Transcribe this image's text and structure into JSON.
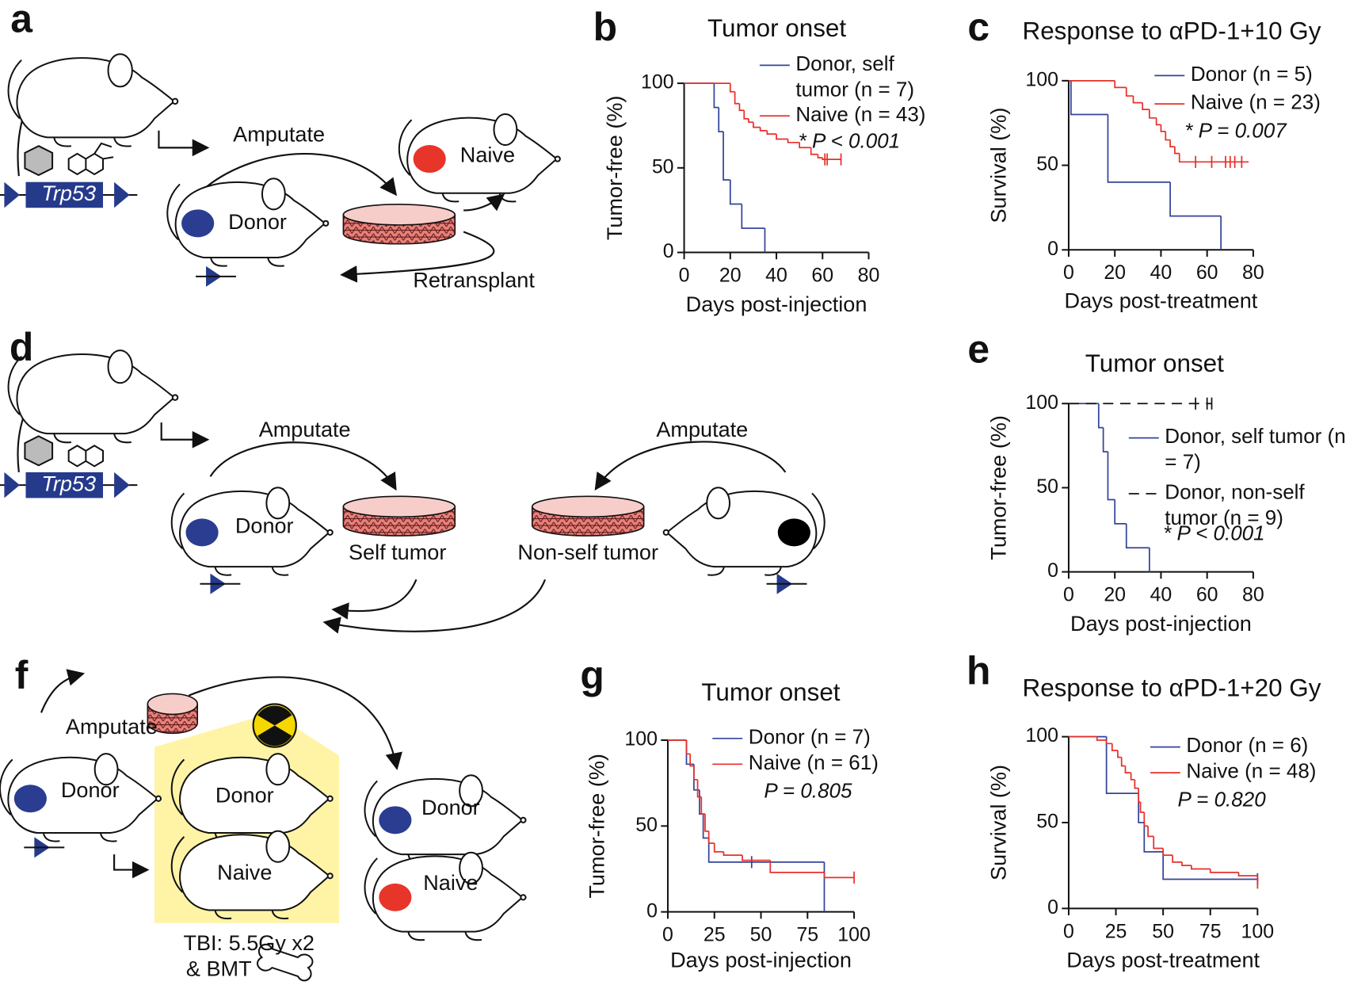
{
  "chart_data": [
    {
      "type": "line",
      "panel": "b",
      "title": "Tumor onset",
      "xlabel": "Days post-injection",
      "ylabel": "Tumor-free (%)",
      "xlim": [
        0,
        80
      ],
      "xticks": [
        0,
        20,
        40,
        60,
        80
      ],
      "ylim": [
        0,
        100
      ],
      "yticks": [
        0,
        50,
        100
      ],
      "step": true,
      "series": [
        {
          "name": "Donor, self tumor (n = 7)",
          "color": "#34449a",
          "x": [
            0,
            13,
            15,
            17,
            20,
            25,
            35
          ],
          "values": [
            100,
            85.7,
            71.4,
            42.9,
            28.6,
            14.3,
            0
          ],
          "censored": []
        },
        {
          "name": "Naive (n = 43)",
          "color": "#e8302a",
          "x": [
            0,
            20,
            22,
            24,
            26,
            28,
            30,
            33,
            36,
            40,
            45,
            50,
            55,
            58,
            60,
            68
          ],
          "values": [
            100,
            95,
            88,
            84,
            79,
            77,
            74,
            72,
            70,
            67,
            65,
            62,
            58,
            56,
            55,
            55
          ],
          "censored": [
            61,
            62,
            68
          ]
        }
      ],
      "annotation": "* P < 0.001"
    },
    {
      "type": "line",
      "panel": "c",
      "title": "Response to αPD-1+10 Gy",
      "xlabel": "Days post-treatment",
      "ylabel": "Survival (%)",
      "xlim": [
        0,
        80
      ],
      "xticks": [
        0,
        20,
        40,
        60,
        80
      ],
      "ylim": [
        0,
        100
      ],
      "yticks": [
        0,
        50,
        100
      ],
      "step": true,
      "series": [
        {
          "name": "Donor (n = 5)",
          "color": "#34449a",
          "x": [
            0,
            1,
            17,
            44,
            66
          ],
          "values": [
            100,
            80,
            40,
            20,
            0
          ],
          "censored": []
        },
        {
          "name": "Naive (n = 23)",
          "color": "#e8302a",
          "x": [
            0,
            20,
            25,
            28,
            32,
            35,
            38,
            40,
            42,
            44,
            46,
            48,
            78
          ],
          "values": [
            100,
            96,
            91,
            87,
            83,
            78,
            74,
            70,
            65,
            61,
            57,
            52,
            52
          ],
          "censored": [
            55,
            62,
            68,
            70,
            72,
            75
          ]
        }
      ],
      "annotation": "* P = 0.007"
    },
    {
      "type": "line",
      "panel": "e",
      "title": "Tumor onset",
      "xlabel": "Days post-injection",
      "ylabel": "Tumor-free (%)",
      "xlim": [
        0,
        80
      ],
      "xticks": [
        0,
        20,
        40,
        60,
        80
      ],
      "ylim": [
        0,
        100
      ],
      "yticks": [
        0,
        50,
        100
      ],
      "step": true,
      "series": [
        {
          "name": "Donor, self tumor (n = 7)",
          "color": "#34449a",
          "x": [
            0,
            13,
            15,
            17,
            20,
            25,
            35
          ],
          "values": [
            100,
            85.7,
            71.4,
            42.9,
            28.6,
            14.3,
            0
          ],
          "censored": []
        },
        {
          "name": "Donor, non-self tumor (n = 9)",
          "color": "#111111",
          "dashed": true,
          "x": [
            0,
            62
          ],
          "values": [
            100,
            100
          ],
          "censored": [
            55,
            60,
            62
          ]
        }
      ],
      "annotation": "* P < 0.001"
    },
    {
      "type": "line",
      "panel": "g",
      "title": "Tumor onset",
      "xlabel": "Days post-injection",
      "ylabel": "Tumor-free (%)",
      "xlim": [
        0,
        100
      ],
      "xticks": [
        0,
        25,
        50,
        75,
        100
      ],
      "ylim": [
        0,
        100
      ],
      "yticks": [
        0,
        50,
        100
      ],
      "step": true,
      "series": [
        {
          "name": "Donor (n = 7)",
          "color": "#34449a",
          "x": [
            0,
            10,
            14,
            17,
            19,
            22,
            84
          ],
          "values": [
            100,
            86,
            71,
            57,
            43,
            29,
            0
          ],
          "censored": [
            45
          ]
        },
        {
          "name": "Naive (n = 61)",
          "color": "#e8302a",
          "x": [
            0,
            10,
            12,
            14,
            16,
            18,
            20,
            22,
            25,
            30,
            40,
            55,
            84,
            100
          ],
          "values": [
            100,
            92,
            85,
            77,
            67,
            57,
            47,
            40,
            35,
            33,
            30,
            23,
            20,
            20
          ],
          "censored": [
            100
          ]
        }
      ],
      "annotation": "P = 0.805"
    },
    {
      "type": "line",
      "panel": "h",
      "title": "Response to αPD-1+20 Gy",
      "xlabel": "Days post-treatment",
      "ylabel": "Survival (%)",
      "xlim": [
        0,
        100
      ],
      "xticks": [
        0,
        25,
        50,
        75,
        100
      ],
      "ylim": [
        0,
        100
      ],
      "yticks": [
        0,
        50,
        100
      ],
      "step": true,
      "series": [
        {
          "name": "Donor (n = 6)",
          "color": "#34449a",
          "x": [
            0,
            20,
            37,
            40,
            50,
            100
          ],
          "values": [
            100,
            67,
            50,
            33,
            17,
            17
          ],
          "censored": [
            100
          ]
        },
        {
          "name": "Naive (n = 48)",
          "color": "#e8302a",
          "x": [
            0,
            15,
            20,
            23,
            26,
            28,
            30,
            33,
            35,
            37,
            38,
            40,
            42,
            45,
            50,
            55,
            60,
            65,
            75,
            90,
            100
          ],
          "values": [
            100,
            98,
            96,
            92,
            88,
            83,
            79,
            75,
            70,
            62,
            56,
            48,
            42,
            35,
            31,
            27,
            25,
            23,
            21,
            19,
            15
          ],
          "censored": [
            100
          ]
        }
      ],
      "annotation": "P = 0.820"
    }
  ],
  "diagrams": [
    {
      "panel": "a",
      "labels": [
        "Trp53",
        "Amputate",
        "Naive",
        "Donor",
        "Retransplant"
      ]
    },
    {
      "panel": "d",
      "labels": [
        "Trp53",
        "Amputate",
        "Amputate",
        "Donor",
        "Self tumor",
        "Non-self tumor"
      ]
    },
    {
      "panel": "f",
      "labels": [
        "Amputate",
        "Donor",
        "Donor",
        "Naive",
        "Donor",
        "Naive",
        "TBI: 5.5Gy x2",
        "& BMT"
      ]
    }
  ]
}
